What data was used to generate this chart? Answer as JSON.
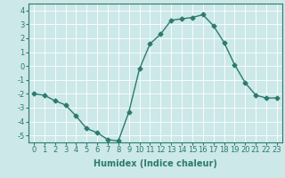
{
  "xlabel": "Humidex (Indice chaleur)",
  "ylabel": "",
  "x": [
    0,
    1,
    2,
    3,
    4,
    5,
    6,
    7,
    8,
    9,
    10,
    11,
    12,
    13,
    14,
    15,
    16,
    17,
    18,
    19,
    20,
    21,
    22,
    23
  ],
  "y": [
    -2.0,
    -2.1,
    -2.5,
    -2.8,
    -3.6,
    -4.5,
    -4.8,
    -5.3,
    -5.4,
    -3.3,
    -0.2,
    1.6,
    2.3,
    3.3,
    3.4,
    3.5,
    3.7,
    2.9,
    1.7,
    0.1,
    -1.2,
    -2.1,
    -2.3,
    -2.3
  ],
  "line_color": "#2d7a6e",
  "marker": "D",
  "marker_size": 2.5,
  "bg_color": "#cce8e8",
  "grid_color": "#ffffff",
  "ylim": [
    -5.5,
    4.5
  ],
  "yticks": [
    -5,
    -4,
    -3,
    -2,
    -1,
    0,
    1,
    2,
    3,
    4
  ],
  "xticks": [
    0,
    1,
    2,
    3,
    4,
    5,
    6,
    7,
    8,
    9,
    10,
    11,
    12,
    13,
    14,
    15,
    16,
    17,
    18,
    19,
    20,
    21,
    22,
    23
  ],
  "xlabel_fontsize": 7,
  "tick_fontsize": 6,
  "line_width": 1.0
}
